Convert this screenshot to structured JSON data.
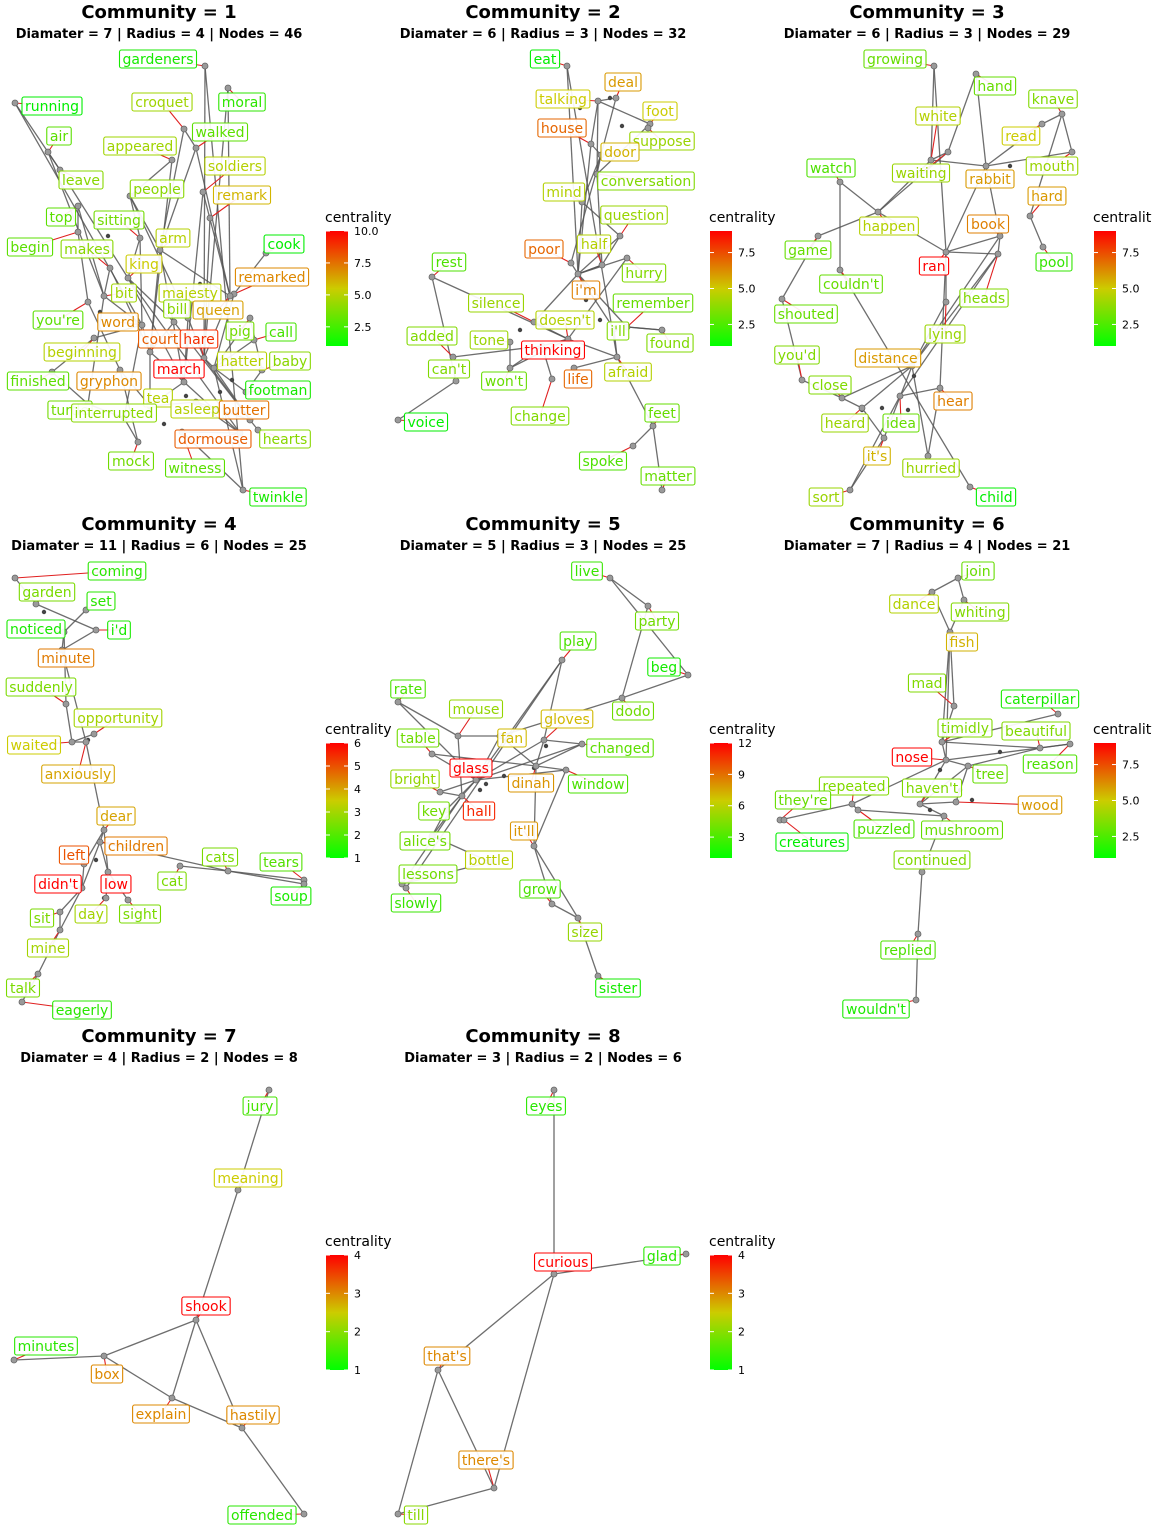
{
  "legend": {
    "title": "centrality"
  },
  "chart_data": [
    {
      "type": "network",
      "title": "Community =  1",
      "subtitle": "Diamater =  7  | Radius =  4 | Nodes =  46",
      "centrality_range": [
        1,
        10
      ],
      "legend_ticks": [
        "10.0",
        "7.5",
        "5.0",
        "2.5"
      ],
      "nodes": [
        {
          "label": "gardeners",
          "centrality": 1.5
        },
        {
          "label": "running",
          "centrality": 1
        },
        {
          "label": "croquet",
          "centrality": 4.5
        },
        {
          "label": "moral",
          "centrality": 2
        },
        {
          "label": "air",
          "centrality": 3
        },
        {
          "label": "walked",
          "centrality": 3
        },
        {
          "label": "appeared",
          "centrality": 4.5
        },
        {
          "label": "soldiers",
          "centrality": 5
        },
        {
          "label": "leave",
          "centrality": 4
        },
        {
          "label": "people",
          "centrality": 4
        },
        {
          "label": "remark",
          "centrality": 6
        },
        {
          "label": "top",
          "centrality": 3
        },
        {
          "label": "sitting",
          "centrality": 3.5
        },
        {
          "label": "cook",
          "centrality": 1
        },
        {
          "label": "begin",
          "centrality": 3
        },
        {
          "label": "makes",
          "centrality": 4
        },
        {
          "label": "arm",
          "centrality": 5
        },
        {
          "label": "king",
          "centrality": 5.5
        },
        {
          "label": "remarked",
          "centrality": 7
        },
        {
          "label": "bit",
          "centrality": 4.5
        },
        {
          "label": "majesty",
          "centrality": 5
        },
        {
          "label": "you're",
          "centrality": 3
        },
        {
          "label": "bill",
          "centrality": 4
        },
        {
          "label": "queen",
          "centrality": 6.5
        },
        {
          "label": "word",
          "centrality": 7
        },
        {
          "label": "pig",
          "centrality": 3.5
        },
        {
          "label": "call",
          "centrality": 2.5
        },
        {
          "label": "court",
          "centrality": 8
        },
        {
          "label": "hare",
          "centrality": 9
        },
        {
          "label": "beginning",
          "centrality": 5
        },
        {
          "label": "hatter",
          "centrality": 5
        },
        {
          "label": "baby",
          "centrality": 4
        },
        {
          "label": "march",
          "centrality": 10
        },
        {
          "label": "finished",
          "centrality": 3
        },
        {
          "label": "gryphon",
          "centrality": 7
        },
        {
          "label": "footman",
          "centrality": 1.5
        },
        {
          "label": "tea",
          "centrality": 5
        },
        {
          "label": "turtle",
          "centrality": 3.5
        },
        {
          "label": "interrupted",
          "centrality": 4
        },
        {
          "label": "asleep",
          "centrality": 5
        },
        {
          "label": "butter",
          "centrality": 7.5
        },
        {
          "label": "dormouse",
          "centrality": 8
        },
        {
          "label": "hearts",
          "centrality": 4
        },
        {
          "label": "mock",
          "centrality": 3.5
        },
        {
          "label": "witness",
          "centrality": 3
        },
        {
          "label": "twinkle",
          "centrality": 1.5
        }
      ]
    },
    {
      "type": "network",
      "title": "Community =  2",
      "subtitle": "Diamater =  6  | Radius =  3 | Nodes =  32",
      "centrality_range": [
        1,
        9
      ],
      "legend_ticks": [
        "7.5",
        "5.0",
        "2.5"
      ],
      "nodes": [
        {
          "label": "eat",
          "centrality": 1
        },
        {
          "label": "deal",
          "centrality": 6
        },
        {
          "label": "talking",
          "centrality": 5
        },
        {
          "label": "foot",
          "centrality": 5
        },
        {
          "label": "house",
          "centrality": 7
        },
        {
          "label": "suppose",
          "centrality": 4
        },
        {
          "label": "door",
          "centrality": 5.5
        },
        {
          "label": "mind",
          "centrality": 4.5
        },
        {
          "label": "conversation",
          "centrality": 3.5
        },
        {
          "label": "question",
          "centrality": 4
        },
        {
          "label": "rest",
          "centrality": 2.5
        },
        {
          "label": "poor",
          "centrality": 7
        },
        {
          "label": "half",
          "centrality": 4.5
        },
        {
          "label": "hurry",
          "centrality": 3.5
        },
        {
          "label": "silence",
          "centrality": 4
        },
        {
          "label": "i'm",
          "centrality": 6.5
        },
        {
          "label": "remember",
          "centrality": 3
        },
        {
          "label": "added",
          "centrality": 3.5
        },
        {
          "label": "doesn't",
          "centrality": 4.5
        },
        {
          "label": "i'll",
          "centrality": 3.5
        },
        {
          "label": "tone",
          "centrality": 4
        },
        {
          "label": "found",
          "centrality": 3.5
        },
        {
          "label": "thinking",
          "centrality": 9
        },
        {
          "label": "can't",
          "centrality": 3.5
        },
        {
          "label": "won't",
          "centrality": 3
        },
        {
          "label": "life",
          "centrality": 7
        },
        {
          "label": "afraid",
          "centrality": 4.5
        },
        {
          "label": "voice",
          "centrality": 1
        },
        {
          "label": "change",
          "centrality": 3.5
        },
        {
          "label": "feet",
          "centrality": 3
        },
        {
          "label": "spoke",
          "centrality": 2.5
        },
        {
          "label": "matter",
          "centrality": 3
        }
      ]
    },
    {
      "type": "network",
      "title": "Community =  3",
      "subtitle": "Diamater =  6  | Radius =  3 | Nodes =  29",
      "centrality_range": [
        1,
        9
      ],
      "legend_ticks": [
        "7.5",
        "5.0",
        "2.5"
      ],
      "nodes": [
        {
          "label": "growing",
          "centrality": 3
        },
        {
          "label": "hand",
          "centrality": 3
        },
        {
          "label": "knave",
          "centrality": 3.5
        },
        {
          "label": "white",
          "centrality": 4.5
        },
        {
          "label": "read",
          "centrality": 5
        },
        {
          "label": "mouth",
          "centrality": 4
        },
        {
          "label": "watch",
          "centrality": 2.5
        },
        {
          "label": "waiting",
          "centrality": 4
        },
        {
          "label": "rabbit",
          "centrality": 6
        },
        {
          "label": "hard",
          "centrality": 6
        },
        {
          "label": "happen",
          "centrality": 4.5
        },
        {
          "label": "book",
          "centrality": 6.5
        },
        {
          "label": "game",
          "centrality": 3
        },
        {
          "label": "ran",
          "centrality": 9
        },
        {
          "label": "pool",
          "centrality": 2
        },
        {
          "label": "couldn't",
          "centrality": 3
        },
        {
          "label": "heads",
          "centrality": 3.5
        },
        {
          "label": "shouted",
          "centrality": 3
        },
        {
          "label": "lying",
          "centrality": 4
        },
        {
          "label": "you'd",
          "centrality": 3.5
        },
        {
          "label": "distance",
          "centrality": 6
        },
        {
          "label": "close",
          "centrality": 3.5
        },
        {
          "label": "hear",
          "centrality": 6.5
        },
        {
          "label": "heard",
          "centrality": 4
        },
        {
          "label": "idea",
          "centrality": 3
        },
        {
          "label": "it's",
          "centrality": 5.5
        },
        {
          "label": "hurried",
          "centrality": 4
        },
        {
          "label": "sort",
          "centrality": 4
        },
        {
          "label": "child",
          "centrality": 1
        }
      ]
    },
    {
      "type": "network",
      "title": "Community =  4",
      "subtitle": "Diamater =  11  | Radius =  6 | Nodes =  25",
      "centrality_range": [
        1,
        6
      ],
      "legend_ticks": [
        "6",
        "5",
        "4",
        "3",
        "2",
        "1"
      ],
      "nodes": [
        {
          "label": "coming",
          "centrality": 1.5
        },
        {
          "label": "garden",
          "centrality": 2.5
        },
        {
          "label": "set",
          "centrality": 1.5
        },
        {
          "label": "noticed",
          "centrality": 1.3
        },
        {
          "label": "i'd",
          "centrality": 1.3
        },
        {
          "label": "minute",
          "centrality": 4.5
        },
        {
          "label": "suddenly",
          "centrality": 2.5
        },
        {
          "label": "opportunity",
          "centrality": 3
        },
        {
          "label": "waited",
          "centrality": 3.5
        },
        {
          "label": "anxiously",
          "centrality": 4
        },
        {
          "label": "dear",
          "centrality": 4
        },
        {
          "label": "left",
          "centrality": 5
        },
        {
          "label": "children",
          "centrality": 4.5
        },
        {
          "label": "cats",
          "centrality": 2.5
        },
        {
          "label": "tears",
          "centrality": 2
        },
        {
          "label": "didn't",
          "centrality": 6
        },
        {
          "label": "low",
          "centrality": 6
        },
        {
          "label": "cat",
          "centrality": 2.5
        },
        {
          "label": "soup",
          "centrality": 1.3
        },
        {
          "label": "sit",
          "centrality": 2.5
        },
        {
          "label": "day",
          "centrality": 3
        },
        {
          "label": "sight",
          "centrality": 2.5
        },
        {
          "label": "mine",
          "centrality": 3
        },
        {
          "label": "talk",
          "centrality": 2.5
        },
        {
          "label": "eagerly",
          "centrality": 1.5
        }
      ]
    },
    {
      "type": "network",
      "title": "Community =  5",
      "subtitle": "Diamater =  5  | Radius =  3 | Nodes =  25",
      "centrality_range": [
        1,
        12
      ],
      "legend_ticks": [
        "12",
        "9",
        "6",
        "3"
      ],
      "nodes": [
        {
          "label": "live",
          "centrality": 2.5
        },
        {
          "label": "party",
          "centrality": 4
        },
        {
          "label": "play",
          "centrality": 3
        },
        {
          "label": "beg",
          "centrality": 1.5
        },
        {
          "label": "rate",
          "centrality": 3
        },
        {
          "label": "mouse",
          "centrality": 5
        },
        {
          "label": "gloves",
          "centrality": 7
        },
        {
          "label": "dodo",
          "centrality": 4
        },
        {
          "label": "table",
          "centrality": 4
        },
        {
          "label": "fan",
          "centrality": 7
        },
        {
          "label": "changed",
          "centrality": 3.5
        },
        {
          "label": "glass",
          "centrality": 12
        },
        {
          "label": "bright",
          "centrality": 5
        },
        {
          "label": "dinah",
          "centrality": 8
        },
        {
          "label": "window",
          "centrality": 3
        },
        {
          "label": "key",
          "centrality": 4
        },
        {
          "label": "hall",
          "centrality": 11
        },
        {
          "label": "alice's",
          "centrality": 4
        },
        {
          "label": "it'll",
          "centrality": 8
        },
        {
          "label": "bottle",
          "centrality": 6
        },
        {
          "label": "lessons",
          "centrality": 4
        },
        {
          "label": "grow",
          "centrality": 3
        },
        {
          "label": "slowly",
          "centrality": 2.5
        },
        {
          "label": "size",
          "centrality": 5
        },
        {
          "label": "sister",
          "centrality": 1.5
        }
      ]
    },
    {
      "type": "network",
      "title": "Community =  6",
      "subtitle": "Diamater =  7  | Radius =  4 | Nodes =  21",
      "centrality_range": [
        1,
        9
      ],
      "legend_ticks": [
        "7.5",
        "5.0",
        "2.5"
      ],
      "nodes": [
        {
          "label": "join",
          "centrality": 3
        },
        {
          "label": "dance",
          "centrality": 4.5
        },
        {
          "label": "whiting",
          "centrality": 3.5
        },
        {
          "label": "fish",
          "centrality": 5.5
        },
        {
          "label": "mad",
          "centrality": 3.5
        },
        {
          "label": "caterpillar",
          "centrality": 1.5
        },
        {
          "label": "timidly",
          "centrality": 3.5
        },
        {
          "label": "beautiful",
          "centrality": 3.5
        },
        {
          "label": "nose",
          "centrality": 9
        },
        {
          "label": "reason",
          "centrality": 2.5
        },
        {
          "label": "repeated",
          "centrality": 3.5
        },
        {
          "label": "haven't",
          "centrality": 3.5
        },
        {
          "label": "tree",
          "centrality": 3
        },
        {
          "label": "they're",
          "centrality": 3
        },
        {
          "label": "wood",
          "centrality": 6
        },
        {
          "label": "puzzled",
          "centrality": 2.5
        },
        {
          "label": "mushroom",
          "centrality": 3
        },
        {
          "label": "creatures",
          "centrality": 1
        },
        {
          "label": "continued",
          "centrality": 3.5
        },
        {
          "label": "replied",
          "centrality": 2.5
        },
        {
          "label": "wouldn't",
          "centrality": 1.5
        }
      ]
    },
    {
      "type": "network",
      "title": "Community =  7",
      "subtitle": "Diamater =  4  | Radius =  2 | Nodes =  8",
      "centrality_range": [
        1,
        4
      ],
      "legend_ticks": [
        "4",
        "3",
        "2",
        "1"
      ],
      "nodes": [
        {
          "label": "jury",
          "centrality": 1.5
        },
        {
          "label": "meaning",
          "centrality": 2.5
        },
        {
          "label": "shook",
          "centrality": 4
        },
        {
          "label": "minutes",
          "centrality": 1.3
        },
        {
          "label": "box",
          "centrality": 3
        },
        {
          "label": "explain",
          "centrality": 3
        },
        {
          "label": "hastily",
          "centrality": 3
        },
        {
          "label": "offended",
          "centrality": 1.3
        }
      ]
    },
    {
      "type": "network",
      "title": "Community =  8",
      "subtitle": "Diamater =  3  | Radius =  2 | Nodes =  6",
      "centrality_range": [
        1,
        4
      ],
      "legend_ticks": [
        "4",
        "3",
        "2",
        "1"
      ],
      "nodes": [
        {
          "label": "eyes",
          "centrality": 1.3
        },
        {
          "label": "curious",
          "centrality": 4
        },
        {
          "label": "glad",
          "centrality": 1.3
        },
        {
          "label": "that's",
          "centrality": 3
        },
        {
          "label": "there's",
          "centrality": 3
        },
        {
          "label": "till",
          "centrality": 2
        }
      ]
    }
  ]
}
